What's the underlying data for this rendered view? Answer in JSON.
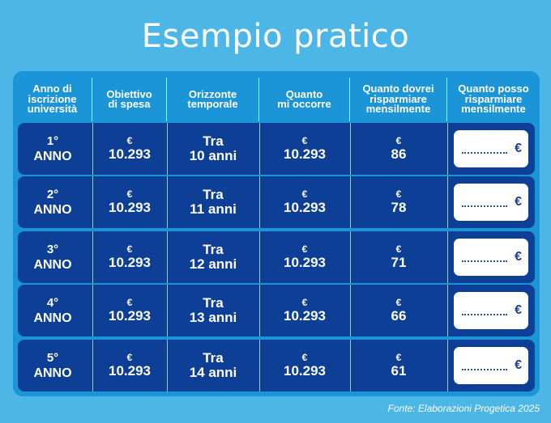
{
  "title": "Esempio pratico",
  "headers": [
    [
      "Anno di",
      "iscrizione",
      "università"
    ],
    [
      "Obiettivo",
      "di spesa"
    ],
    [
      "Orizzonte",
      "temporale"
    ],
    [
      "Quanto",
      "mi occorre"
    ],
    [
      "Quanto dovrei",
      "risparmiare",
      "mensilmente"
    ],
    [
      "Quanto posso",
      "risparmiare",
      "mensilmente"
    ]
  ],
  "currency": "€",
  "rows": [
    {
      "year_num": "1°",
      "year_word": "ANNO",
      "goal": "10.293",
      "horizon_tra": "Tra",
      "horizon_years": "10 anni",
      "need": "10.293",
      "monthly": "86",
      "input_placeholder": "..................",
      "input_currency": "€"
    },
    {
      "year_num": "2°",
      "year_word": "ANNO",
      "goal": "10.293",
      "horizon_tra": "Tra",
      "horizon_years": "11 anni",
      "need": "10.293",
      "monthly": "78",
      "input_placeholder": "..................",
      "input_currency": "€"
    },
    {
      "year_num": "3°",
      "year_word": "ANNO",
      "goal": "10.293",
      "horizon_tra": "Tra",
      "horizon_years": "12 anni",
      "need": "10.293",
      "monthly": "71",
      "input_placeholder": "..................",
      "input_currency": "€"
    },
    {
      "year_num": "4°",
      "year_word": "ANNO",
      "goal": "10.293",
      "horizon_tra": "Tra",
      "horizon_years": "13 anni",
      "need": "10.293",
      "monthly": "66",
      "input_placeholder": "..................",
      "input_currency": "€"
    },
    {
      "year_num": "5°",
      "year_word": "ANNO",
      "goal": "10.293",
      "horizon_tra": "Tra",
      "horizon_years": "14 anni",
      "need": "10.293",
      "monthly": "61",
      "input_placeholder": "..................",
      "input_currency": "€"
    }
  ],
  "source": "Fonte: Elaborazioni Progetica 2025",
  "colors": {
    "background": "#4cb6e6",
    "panel": "#1c94d8",
    "row": "#0c3f95",
    "text": "#ffffff"
  }
}
